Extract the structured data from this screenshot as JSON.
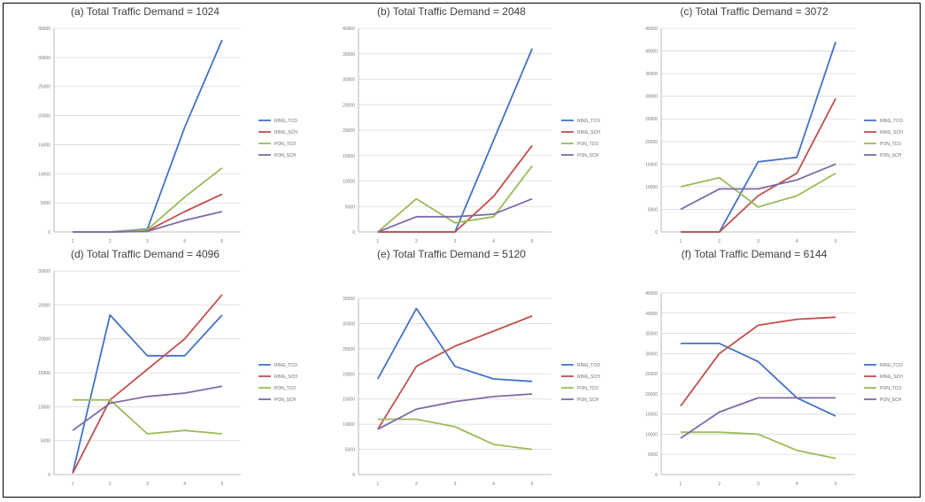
{
  "chart_data": [
    {
      "type": "line",
      "title": "(a) Total Traffic Demand = 1024",
      "categories": [
        "1",
        "2",
        "3",
        "4",
        "5"
      ],
      "ylim": [
        0,
        35000
      ],
      "yticks": [
        "0",
        "5000",
        "10000",
        "15000",
        "20000",
        "25000",
        "30000",
        "35000"
      ],
      "grid": true,
      "legend_position": "right",
      "series": [
        {
          "name": "RING_TCO",
          "color": "#4472c4",
          "values": [
            0,
            0,
            500,
            18000,
            33000
          ]
        },
        {
          "name": "RING_SCH",
          "color": "#c0504d",
          "values": [
            0,
            0,
            200,
            3500,
            6500
          ]
        },
        {
          "name": "PON_TCO",
          "color": "#9bbb59",
          "values": [
            0,
            0,
            400,
            6000,
            11000
          ]
        },
        {
          "name": "PON_SCH",
          "color": "#7f6aa7",
          "values": [
            0,
            0,
            100,
            2000,
            3500
          ]
        }
      ]
    },
    {
      "type": "line",
      "title": "(b) Total Traffic Demand = 2048",
      "categories": [
        "1",
        "2",
        "3",
        "4",
        "5"
      ],
      "ylim": [
        0,
        40000
      ],
      "yticks": [
        "0",
        "5000",
        "10000",
        "15000",
        "20000",
        "25000",
        "30000",
        "35000",
        "40000"
      ],
      "grid": true,
      "legend_position": "right",
      "series": [
        {
          "name": "RING_TCO",
          "color": "#4472c4",
          "values": [
            0,
            0,
            0,
            18000,
            36000
          ]
        },
        {
          "name": "RING_SCH",
          "color": "#c0504d",
          "values": [
            0,
            0,
            0,
            7000,
            17000
          ]
        },
        {
          "name": "PON_TCO",
          "color": "#9bbb59",
          "values": [
            0,
            6500,
            1800,
            3000,
            13000
          ]
        },
        {
          "name": "PON_SCH",
          "color": "#7f6aa7",
          "values": [
            0,
            3000,
            3000,
            3500,
            6500
          ]
        }
      ]
    },
    {
      "type": "line",
      "title": "(c) Total Traffic Demand = 3072",
      "categories": [
        "1",
        "2",
        "3",
        "4",
        "5"
      ],
      "ylim": [
        0,
        45000
      ],
      "yticks": [
        "0",
        "5000",
        "10000",
        "15000",
        "20000",
        "25000",
        "30000",
        "35000",
        "40000",
        "45000"
      ],
      "grid": true,
      "legend_position": "right",
      "series": [
        {
          "name": "RING_TCO",
          "color": "#4472c4",
          "values": [
            0,
            0,
            15500,
            16500,
            42000
          ]
        },
        {
          "name": "RING_SCH",
          "color": "#c0504d",
          "values": [
            0,
            0,
            8000,
            13000,
            29500
          ]
        },
        {
          "name": "PON_TCO",
          "color": "#9bbb59",
          "values": [
            10000,
            12000,
            5500,
            8000,
            13000
          ]
        },
        {
          "name": "PON_SCH",
          "color": "#7f6aa7",
          "values": [
            5000,
            9500,
            9500,
            11500,
            15000
          ]
        }
      ]
    },
    {
      "type": "line",
      "title": "(d) Total Traffic Demand = 4096",
      "categories": [
        "1",
        "2",
        "3",
        "4",
        "5"
      ],
      "ylim": [
        0,
        30000
      ],
      "yticks": [
        "0",
        "5000",
        "10000",
        "15000",
        "20000",
        "25000",
        "30000"
      ],
      "grid": true,
      "legend_position": "right",
      "series": [
        {
          "name": "RING_TCO",
          "color": "#4472c4",
          "values": [
            200,
            23500,
            17500,
            17500,
            23500
          ]
        },
        {
          "name": "RING_SCH",
          "color": "#c0504d",
          "values": [
            200,
            11000,
            15500,
            20000,
            26500
          ]
        },
        {
          "name": "PON_TCO",
          "color": "#9bbb59",
          "values": [
            11000,
            11000,
            6000,
            6500,
            6000
          ]
        },
        {
          "name": "PON_SCH",
          "color": "#7f6aa7",
          "values": [
            6500,
            10500,
            11500,
            12000,
            13000
          ]
        }
      ]
    },
    {
      "type": "line",
      "title": "(e) Total Traffic Demand = 5120",
      "categories": [
        "1",
        "2",
        "3",
        "4",
        "5"
      ],
      "ylim": [
        0,
        35000
      ],
      "yticks": [
        "0",
        "5000",
        "10000",
        "15000",
        "20000",
        "25000",
        "30000",
        "35000"
      ],
      "grid": true,
      "legend_position": "right",
      "series": [
        {
          "name": "RING_TCO",
          "color": "#4472c4",
          "values": [
            19000,
            33000,
            21500,
            19000,
            18500
          ]
        },
        {
          "name": "RING_SCH",
          "color": "#c0504d",
          "values": [
            9000,
            21500,
            25500,
            28500,
            31500
          ]
        },
        {
          "name": "PON_TCO",
          "color": "#9bbb59",
          "values": [
            11000,
            11000,
            9500,
            6000,
            5000
          ]
        },
        {
          "name": "PON_SCH",
          "color": "#7f6aa7",
          "values": [
            9000,
            13000,
            14500,
            15500,
            16000
          ]
        }
      ]
    },
    {
      "type": "line",
      "title": "(f) Total Traffic Demand = 6144",
      "categories": [
        "1",
        "2",
        "3",
        "4",
        "5"
      ],
      "ylim": [
        0,
        45000
      ],
      "yticks": [
        "0",
        "5000",
        "10000",
        "15000",
        "20000",
        "25000",
        "30000",
        "35000",
        "40000",
        "45000"
      ],
      "grid": true,
      "legend_position": "right",
      "series": [
        {
          "name": "RING_TCO",
          "color": "#4472c4",
          "values": [
            32500,
            32500,
            28000,
            19000,
            14500
          ]
        },
        {
          "name": "RING_SCH",
          "color": "#c0504d",
          "values": [
            17000,
            30000,
            37000,
            38500,
            39000
          ]
        },
        {
          "name": "PON_TCO",
          "color": "#9bbb59",
          "values": [
            10500,
            10500,
            10000,
            6000,
            4000
          ]
        },
        {
          "name": "PON_SCH",
          "color": "#7f6aa7",
          "values": [
            9000,
            15500,
            19000,
            19000,
            19000
          ]
        }
      ]
    }
  ]
}
